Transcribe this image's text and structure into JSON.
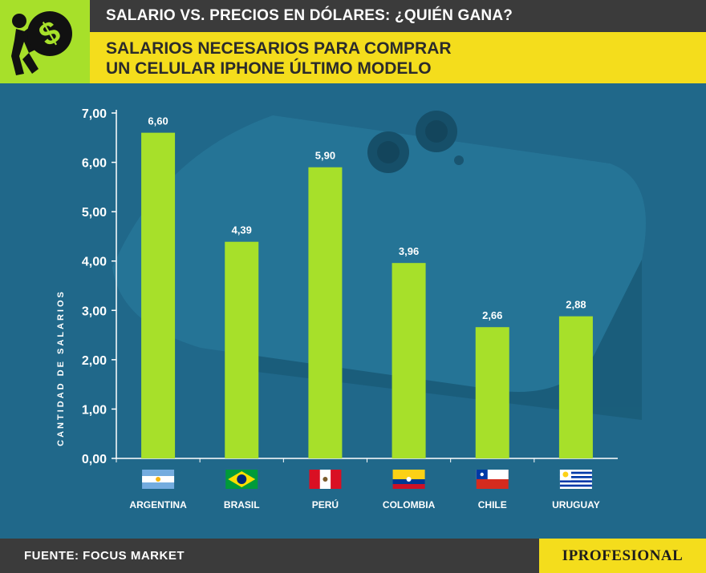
{
  "header": {
    "title": "SALARIO VS. PRECIOS EN DÓLARES: ¿QUIÉN GANA?",
    "subtitle_line1": "SALARIOS NECESARIOS PARA COMPRAR",
    "subtitle_line2": "UN CELULAR IPHONE ÚLTIMO MODELO",
    "logo_icon": "dollar-person-icon"
  },
  "colors": {
    "bar": "#a7e02a",
    "accent_yellow": "#f4dd1c",
    "header_dark": "#3b3b3b",
    "background_blue": "#20688a"
  },
  "chart_data": {
    "type": "bar",
    "ylabel": "CANTIDAD DE SALARIOS",
    "ylim": [
      0,
      7
    ],
    "yticks": [
      "0,00",
      "1,00",
      "2,00",
      "3,00",
      "4,00",
      "5,00",
      "6,00",
      "7,00"
    ],
    "categories": [
      "ARGENTINA",
      "BRASIL",
      "PERÚ",
      "COLOMBIA",
      "CHILE",
      "URUGUAY"
    ],
    "values": [
      6.6,
      4.39,
      5.9,
      3.96,
      2.66,
      2.88
    ],
    "value_labels": [
      "6,60",
      "4,39",
      "5,90",
      "3,96",
      "2,66",
      "2,88"
    ],
    "flags": [
      "argentina-flag-icon",
      "brasil-flag-icon",
      "peru-flag-icon",
      "colombia-flag-icon",
      "chile-flag-icon",
      "uruguay-flag-icon"
    ],
    "grid": false
  },
  "footer": {
    "source": "FUENTE: FOCUS MARKET",
    "brand": "IPROFESIONAL"
  }
}
